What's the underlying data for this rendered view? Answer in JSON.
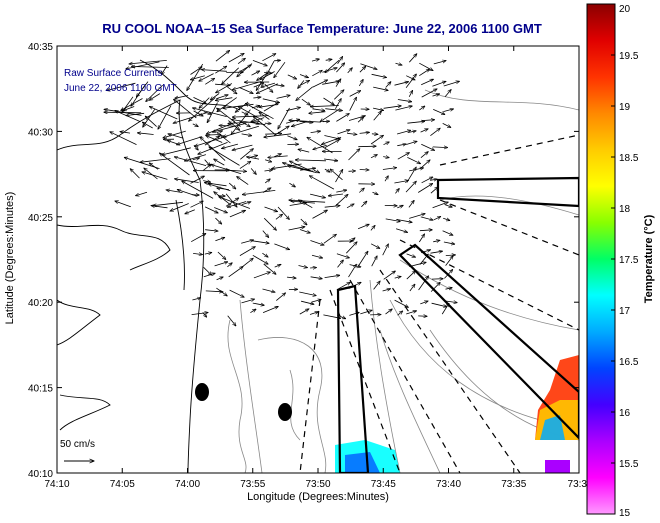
{
  "title": "RU COOL   NOAA–15  Sea Surface Temperature:  June 22, 2006 1100 GMT",
  "title_color": "#00008b",
  "inset_label": {
    "line1": "Raw Surface Currents",
    "line2": "June 22, 2006 1100 GMT",
    "color": "#00008b"
  },
  "scale_label": "50 cm/s",
  "x_axis": {
    "label": "Longitude (Degrees:Minutes)",
    "ticks": [
      "74:10",
      "74:05",
      "74:00",
      "73:55",
      "73:50",
      "73:45",
      "73:40",
      "73:35",
      "73:3"
    ]
  },
  "y_axis": {
    "label": "Latitude (Degrees:Minutes)",
    "ticks": [
      "40:35",
      "40:30",
      "40:25",
      "40:20",
      "40:15",
      "40:10"
    ]
  },
  "colorbar": {
    "label": "Temperature (°C)",
    "ticks": [
      "20",
      "19.5",
      "19",
      "18.5",
      "18",
      "17.5",
      "17",
      "16.5",
      "16",
      "15.5",
      "15"
    ],
    "colors": [
      "#8b0000",
      "#e00000",
      "#ff3300",
      "#ff8800",
      "#ffcc00",
      "#ffff00",
      "#88ff00",
      "#00ff66",
      "#00ffff",
      "#00aaff",
      "#0044ff",
      "#4400ff",
      "#aa00ff",
      "#ff00ff",
      "#ff99ff"
    ]
  }
}
